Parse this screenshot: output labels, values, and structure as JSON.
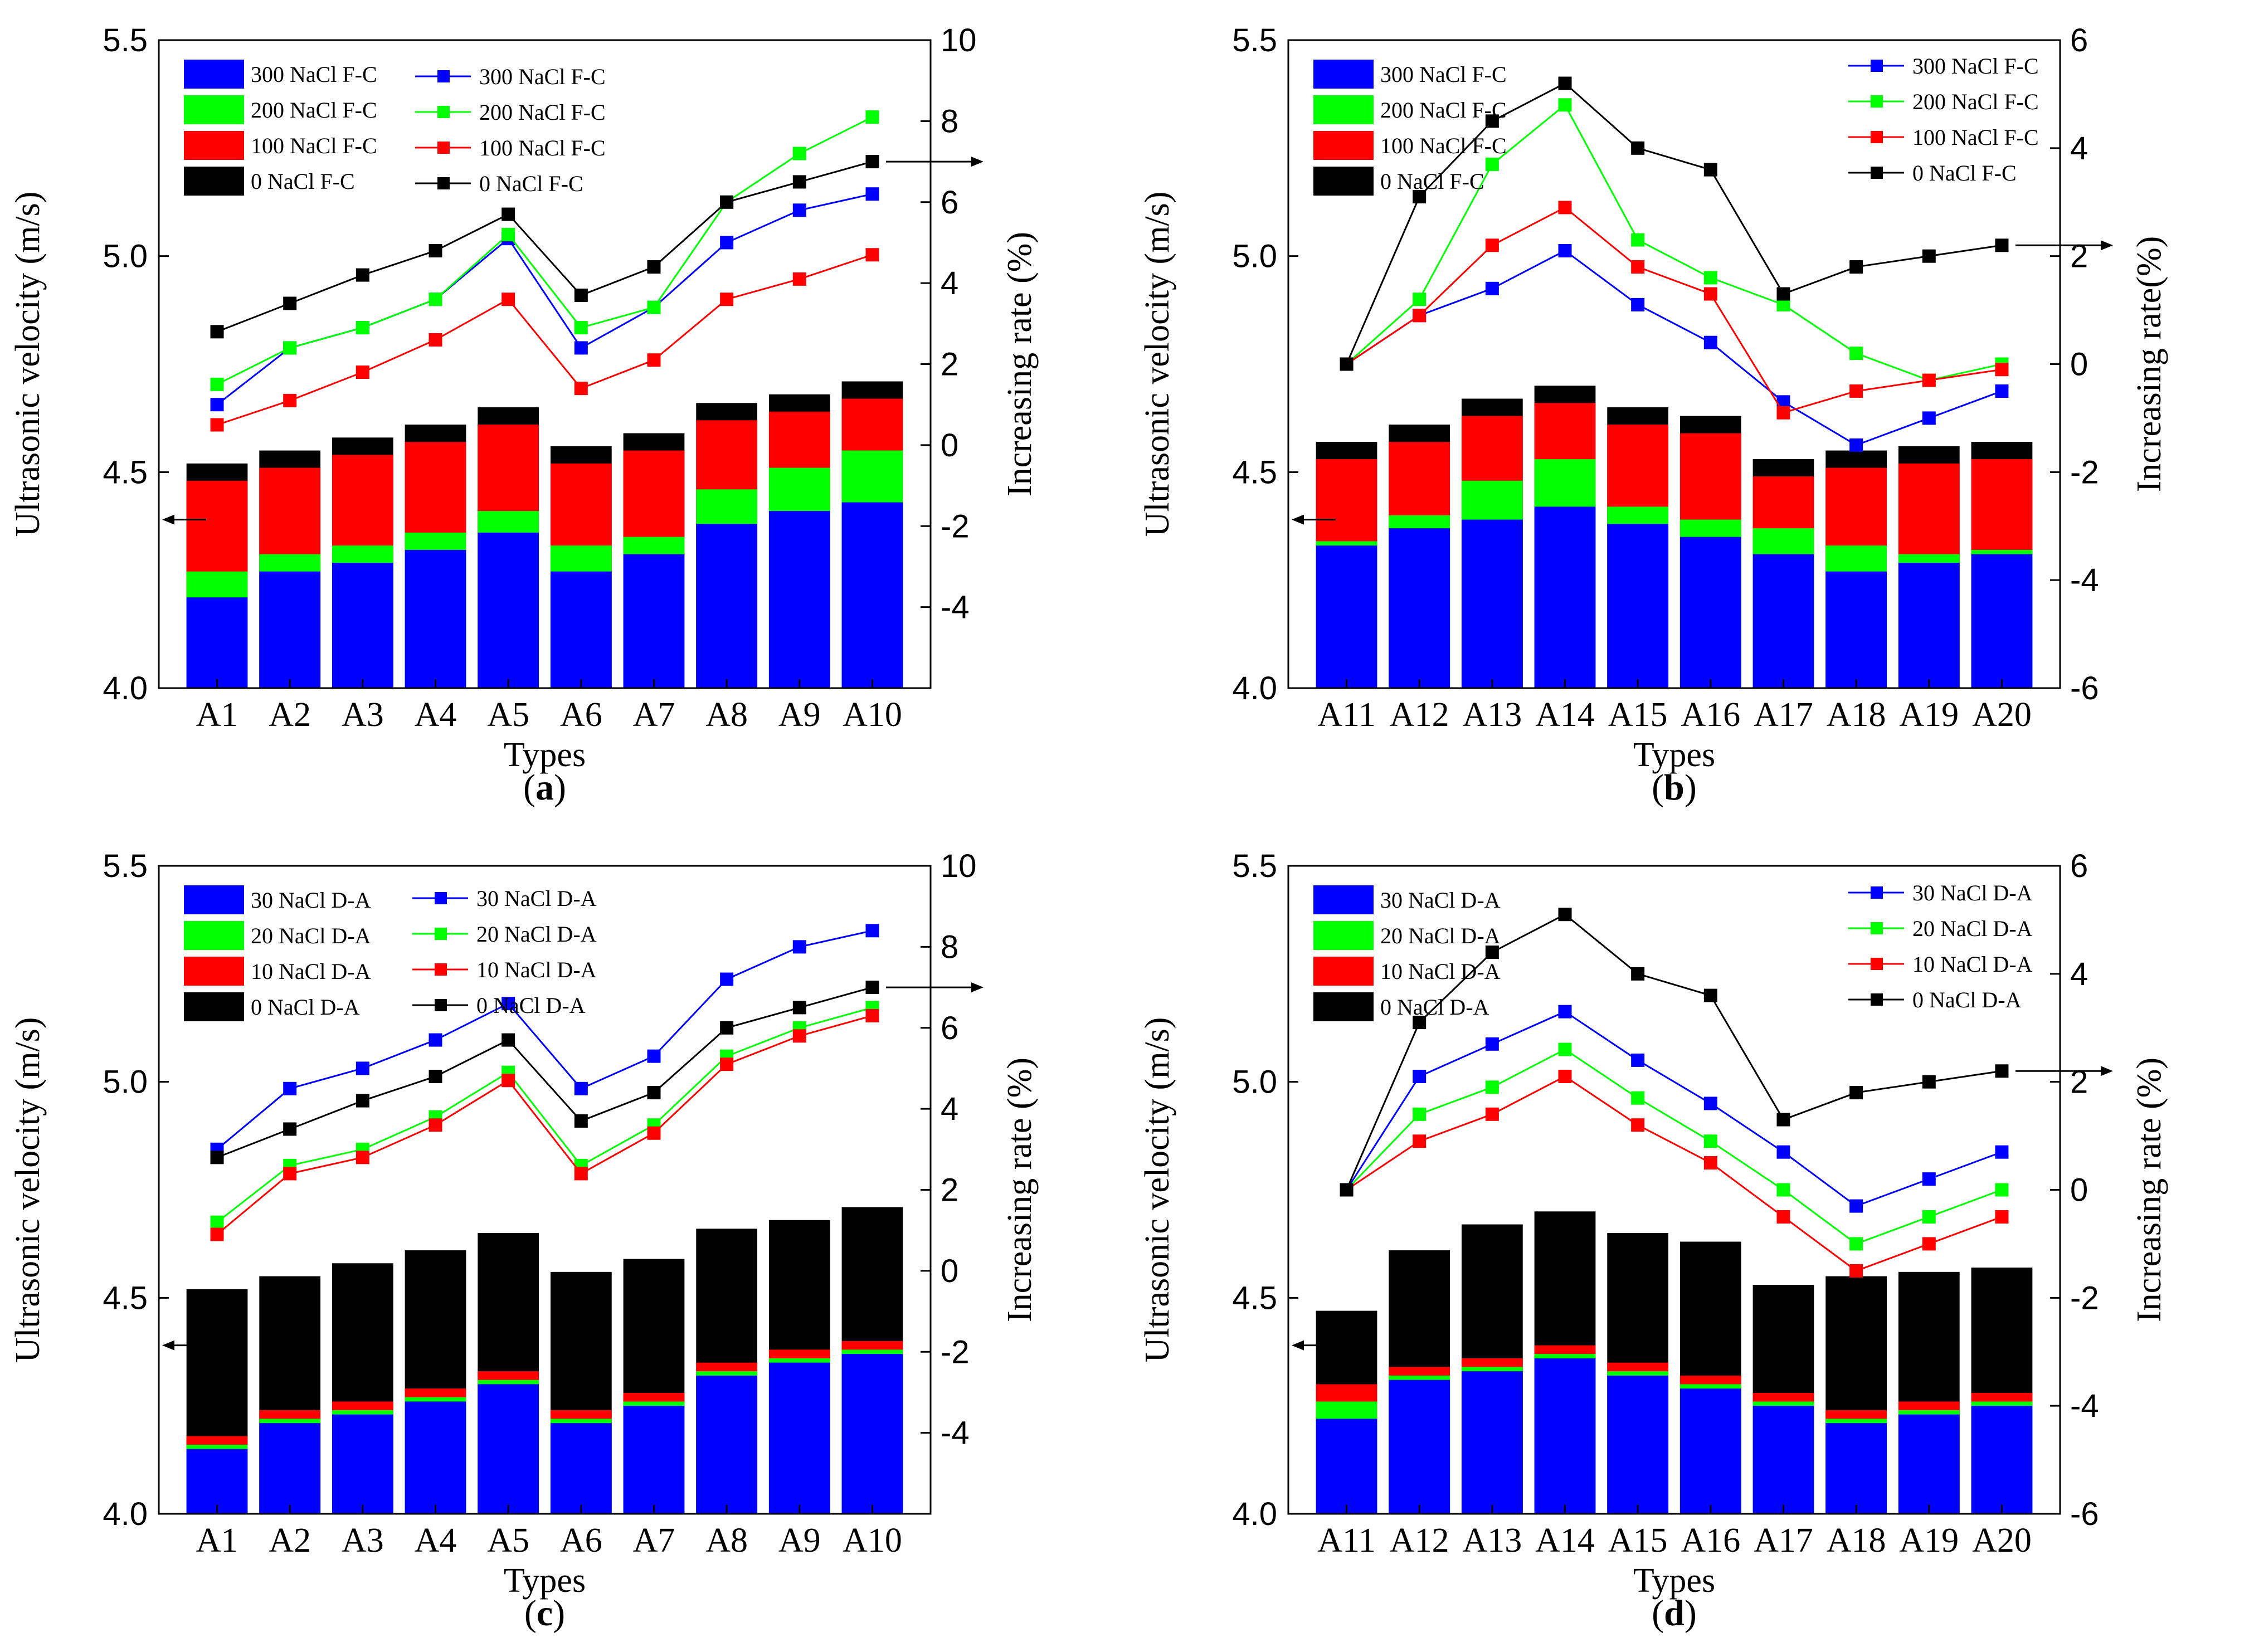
{
  "colors": {
    "blue": "#0000ff",
    "green": "#00ff00",
    "red": "#ff0000",
    "black": "#000000"
  },
  "chart_data": [
    {
      "type": "bar",
      "caption": "a",
      "xlabel": "Types",
      "ylabel": "Ultrasonic velocity (m/s)",
      "ylabel2": "Increasing rate (%)",
      "ylim": [
        4.0,
        5.5
      ],
      "ylim2": [
        -6,
        10
      ],
      "yticks": [
        "4.0",
        "4.5",
        "5.0",
        "5.5"
      ],
      "y2ticks": [
        "-4",
        "-2",
        "0",
        "2",
        "4",
        "6",
        "8",
        "10"
      ],
      "categories": [
        "A1",
        "A2",
        "A3",
        "A4",
        "A5",
        "A6",
        "A7",
        "A8",
        "A9",
        "A10"
      ],
      "bar_series": [
        {
          "name": "300 NaCl F-C",
          "color": "blue",
          "values": [
            4.21,
            4.27,
            4.29,
            4.32,
            4.36,
            4.27,
            4.31,
            4.38,
            4.41,
            4.43
          ]
        },
        {
          "name": "200 NaCl F-C",
          "color": "green",
          "values": [
            4.27,
            4.31,
            4.33,
            4.36,
            4.41,
            4.33,
            4.35,
            4.46,
            4.51,
            4.55
          ]
        },
        {
          "name": "100 NaCl F-C",
          "color": "red",
          "values": [
            4.48,
            4.51,
            4.54,
            4.57,
            4.61,
            4.52,
            4.55,
            4.62,
            4.64,
            4.67
          ]
        },
        {
          "name": "0 NaCl F-C",
          "color": "black",
          "values": [
            4.52,
            4.55,
            4.58,
            4.61,
            4.65,
            4.56,
            4.59,
            4.66,
            4.68,
            4.71
          ]
        }
      ],
      "line_series": [
        {
          "name": "300 NaCl F-C",
          "color": "blue",
          "values": [
            1.0,
            2.4,
            2.9,
            3.6,
            5.1,
            2.4,
            3.4,
            5.0,
            5.8,
            6.2
          ]
        },
        {
          "name": "200 NaCl F-C",
          "color": "green",
          "values": [
            1.5,
            2.4,
            2.9,
            3.6,
            5.2,
            2.9,
            3.4,
            6.0,
            7.2,
            8.1
          ]
        },
        {
          "name": "100 NaCl F-C",
          "color": "red",
          "values": [
            0.5,
            1.1,
            1.8,
            2.6,
            3.6,
            1.4,
            2.1,
            3.6,
            4.1,
            4.7
          ]
        },
        {
          "name": "0 NaCl F-C",
          "color": "black",
          "values": [
            2.8,
            3.5,
            4.2,
            4.8,
            5.7,
            3.7,
            4.4,
            6.0,
            6.5,
            7.0
          ]
        }
      ],
      "bar_legend": [
        "300 NaCl F-C",
        "200 NaCl F-C",
        "100 NaCl F-C",
        "0 NaCl F-C"
      ],
      "line_legend": [
        "300 NaCl F-C",
        "200 NaCl F-C",
        "100 NaCl F-C",
        "0 NaCl F-C"
      ]
    },
    {
      "type": "bar",
      "caption": "b",
      "xlabel": "Types",
      "ylabel": "Ultrasonic velocity (m/s)",
      "ylabel2": "Increasing rate(%)",
      "ylim": [
        4.0,
        5.5
      ],
      "ylim2": [
        -6,
        6
      ],
      "yticks": [
        "4.0",
        "4.5",
        "5.0",
        "5.5"
      ],
      "y2ticks": [
        "-6",
        "-4",
        "-2",
        "0",
        "2",
        "4",
        "6"
      ],
      "categories": [
        "A11",
        "A12",
        "A13",
        "A14",
        "A15",
        "A16",
        "A17",
        "A18",
        "A19",
        "A20"
      ],
      "bar_series": [
        {
          "name": "300 NaCl F-C",
          "color": "blue",
          "values": [
            4.33,
            4.37,
            4.39,
            4.42,
            4.38,
            4.35,
            4.31,
            4.27,
            4.29,
            4.31
          ]
        },
        {
          "name": "200 NaCl F-C",
          "color": "green",
          "values": [
            4.34,
            4.4,
            4.48,
            4.53,
            4.42,
            4.39,
            4.37,
            4.33,
            4.31,
            4.32
          ]
        },
        {
          "name": "100 NaCl F-C",
          "color": "red",
          "values": [
            4.53,
            4.57,
            4.63,
            4.66,
            4.61,
            4.59,
            4.49,
            4.51,
            4.52,
            4.53
          ]
        },
        {
          "name": "0 NaCl F-C",
          "color": "black",
          "values": [
            4.57,
            4.61,
            4.67,
            4.7,
            4.65,
            4.63,
            4.53,
            4.55,
            4.56,
            4.57
          ]
        }
      ],
      "line_series": [
        {
          "name": "300 NaCl F-C",
          "color": "blue",
          "values": [
            0.0,
            0.9,
            1.4,
            2.1,
            1.1,
            0.4,
            -0.7,
            -1.5,
            -1.0,
            -0.5
          ]
        },
        {
          "name": "200 NaCl F-C",
          "color": "green",
          "values": [
            0.0,
            1.2,
            3.7,
            4.8,
            2.3,
            1.6,
            1.1,
            0.2,
            -0.3,
            0.0
          ]
        },
        {
          "name": "100 NaCl F-C",
          "color": "red",
          "values": [
            0.0,
            0.9,
            2.2,
            2.9,
            1.8,
            1.3,
            -0.9,
            -0.5,
            -0.3,
            -0.1
          ]
        },
        {
          "name": "0 NaCl F-C",
          "color": "black",
          "values": [
            0.0,
            3.1,
            4.5,
            5.2,
            4.0,
            3.6,
            1.3,
            1.8,
            2.0,
            2.2
          ]
        }
      ],
      "bar_legend": [
        "300 NaCl F-C",
        "200 NaCl F-C",
        "100 NaCl F-C",
        "0 NaCl F-C"
      ],
      "line_legend": [
        "300 NaCl F-C",
        "200 NaCl F-C",
        "100 NaCl F-C",
        "0 NaCl F-C"
      ]
    },
    {
      "type": "bar",
      "caption": "c",
      "xlabel": "Types",
      "ylabel": "Ultrasonic velocity (m/s)",
      "ylabel2": "Increasing rate (%)",
      "ylim": [
        4.0,
        5.5
      ],
      "ylim2": [
        -6,
        10
      ],
      "yticks": [
        "4.0",
        "4.5",
        "5.0",
        "5.5"
      ],
      "y2ticks": [
        "-4",
        "-2",
        "0",
        "2",
        "4",
        "6",
        "8",
        "10"
      ],
      "categories": [
        "A1",
        "A2",
        "A3",
        "A4",
        "A5",
        "A6",
        "A7",
        "A8",
        "A9",
        "A10"
      ],
      "bar_series": [
        {
          "name": "30 NaCl D-A",
          "color": "blue",
          "values": [
            4.15,
            4.21,
            4.23,
            4.26,
            4.3,
            4.21,
            4.25,
            4.32,
            4.35,
            4.37
          ]
        },
        {
          "name": "20 NaCl D-A",
          "color": "green",
          "values": [
            4.16,
            4.22,
            4.24,
            4.27,
            4.31,
            4.22,
            4.26,
            4.33,
            4.36,
            4.38
          ]
        },
        {
          "name": "10 NaCl D-A",
          "color": "red",
          "values": [
            4.18,
            4.24,
            4.26,
            4.29,
            4.33,
            4.24,
            4.28,
            4.35,
            4.38,
            4.4
          ]
        },
        {
          "name": "0 NaCl D-A",
          "color": "black",
          "values": [
            4.52,
            4.55,
            4.58,
            4.61,
            4.65,
            4.56,
            4.59,
            4.66,
            4.68,
            4.71
          ]
        }
      ],
      "line_series": [
        {
          "name": "30 NaCl D-A",
          "color": "blue",
          "values": [
            3.0,
            4.5,
            5.0,
            5.7,
            6.6,
            4.5,
            5.3,
            7.2,
            8.0,
            8.4
          ]
        },
        {
          "name": "20 NaCl D-A",
          "color": "green",
          "values": [
            1.2,
            2.6,
            3.0,
            3.8,
            4.9,
            2.6,
            3.6,
            5.3,
            6.0,
            6.5
          ]
        },
        {
          "name": "10 NaCl D-A",
          "color": "red",
          "values": [
            0.9,
            2.4,
            2.8,
            3.6,
            4.7,
            2.4,
            3.4,
            5.1,
            5.8,
            6.3
          ]
        },
        {
          "name": "0 NaCl D-A",
          "color": "black",
          "values": [
            2.8,
            3.5,
            4.2,
            4.8,
            5.7,
            3.7,
            4.4,
            6.0,
            6.5,
            7.0
          ]
        }
      ],
      "bar_legend": [
        "30 NaCl D-A",
        "20 NaCl D-A",
        "10 NaCl D-A",
        "0 NaCl D-A"
      ],
      "line_legend": [
        "30 NaCl D-A",
        "20 NaCl D-A",
        "10 NaCl D-A",
        "0 NaCl D-A"
      ]
    },
    {
      "type": "bar",
      "caption": "d",
      "xlabel": "Types",
      "ylabel": "Ultrasonic velocity (m/s)",
      "ylabel2": "Increasing rate (%)",
      "ylim": [
        4.0,
        5.5
      ],
      "ylim2": [
        -6,
        6
      ],
      "yticks": [
        "4.0",
        "4.5",
        "5.0",
        "5.5"
      ],
      "y2ticks": [
        "-6",
        "-4",
        "-2",
        "0",
        "2",
        "4",
        "6"
      ],
      "categories": [
        "A11",
        "A12",
        "A13",
        "A14",
        "A15",
        "A16",
        "A17",
        "A18",
        "A19",
        "A20"
      ],
      "bar_series": [
        {
          "name": "30 NaCl D-A",
          "color": "blue",
          "values": [
            4.22,
            4.31,
            4.33,
            4.36,
            4.32,
            4.29,
            4.25,
            4.21,
            4.23,
            4.25
          ]
        },
        {
          "name": "20 NaCl D-A",
          "color": "green",
          "values": [
            4.26,
            4.32,
            4.34,
            4.37,
            4.33,
            4.3,
            4.26,
            4.22,
            4.24,
            4.26
          ]
        },
        {
          "name": "10 NaCl D-A",
          "color": "red",
          "values": [
            4.3,
            4.34,
            4.36,
            4.39,
            4.35,
            4.32,
            4.28,
            4.24,
            4.26,
            4.28
          ]
        },
        {
          "name": "0 NaCl D-A",
          "color": "black",
          "values": [
            4.47,
            4.61,
            4.67,
            4.7,
            4.65,
            4.63,
            4.53,
            4.55,
            4.56,
            4.57
          ]
        }
      ],
      "line_series": [
        {
          "name": "30 NaCl D-A",
          "color": "blue",
          "values": [
            0.0,
            2.1,
            2.7,
            3.3,
            2.4,
            1.6,
            0.7,
            -0.3,
            0.2,
            0.7
          ]
        },
        {
          "name": "20 NaCl D-A",
          "color": "green",
          "values": [
            0.0,
            1.4,
            1.9,
            2.6,
            1.7,
            0.9,
            0.0,
            -1.0,
            -0.5,
            0.0
          ]
        },
        {
          "name": "10 NaCl D-A",
          "color": "red",
          "values": [
            0.0,
            0.9,
            1.4,
            2.1,
            1.2,
            0.5,
            -0.5,
            -1.5,
            -1.0,
            -0.5
          ]
        },
        {
          "name": "0 NaCl D-A",
          "color": "black",
          "values": [
            0.0,
            3.1,
            4.4,
            5.1,
            4.0,
            3.6,
            1.3,
            1.8,
            2.0,
            2.2
          ]
        }
      ],
      "bar_legend": [
        "30 NaCl D-A",
        "20 NaCl D-A",
        "10 NaCl D-A",
        "0 NaCl D-A"
      ],
      "line_legend": [
        "30 NaCl D-A",
        "20 NaCl D-A",
        "10 NaCl D-A",
        "0 NaCl D-A"
      ]
    }
  ]
}
